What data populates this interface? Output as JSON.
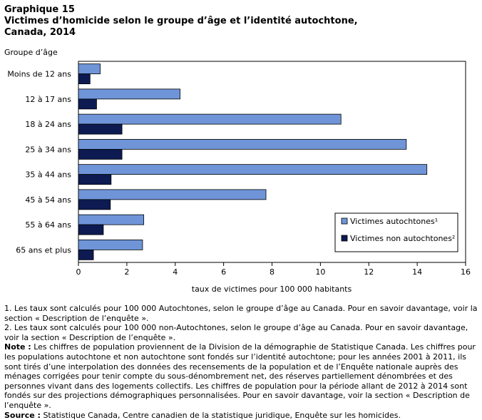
{
  "header": {
    "graph_number": "Graphique  15",
    "title_line1": "Victimes d’homicide selon le groupe d’âge et l’identité autochtone,",
    "title_line2": "Canada, 2014"
  },
  "chart_data": {
    "type": "bar",
    "orientation": "horizontal",
    "categories": [
      "Moins de 12 ans",
      "12 à 17 ans",
      "18 à 24 ans",
      "25 à 34 ans",
      "35 à 44 ans",
      "45 à 54 ans",
      "55 à 64 ans",
      "65 ans et plus"
    ],
    "series": [
      {
        "name": "Victimes autochtones¹",
        "color": "#6f95d8",
        "values": [
          0.9,
          4.2,
          10.85,
          13.55,
          14.4,
          7.75,
          2.7,
          2.65
        ]
      },
      {
        "name": "Victimes non autochtones²",
        "color": "#0d1b52",
        "values": [
          0.48,
          0.75,
          1.8,
          1.8,
          1.35,
          1.32,
          1.03,
          0.62
        ]
      }
    ],
    "ylabel": "Groupe d’âge",
    "xlabel": "taux de victimes pour 100 000 habitants",
    "xlim": [
      0,
      16
    ],
    "xticks": [
      "0",
      "2",
      "4",
      "6",
      "8",
      "10",
      "12",
      "14",
      "16"
    ],
    "grid": false,
    "legend_position": "bottom-right"
  },
  "notes": {
    "note1": "1. Les taux sont calculés pour 100 000 Autochtones, selon le groupe d’âge au Canada. Pour en savoir davantage, voir la section « Description de l’enquête ».",
    "note2": "2. Les taux sont calculés pour 100 000 non-Autochtones, selon le groupe d’âge au Canada. Pour en savoir davantage, voir la section « Description de l’enquête ».",
    "note_label": "Note :",
    "note_text": " Les chiffres de population proviennent de la Division de la démographie de Statistique Canada. Les chiffres pour les populations autochtone et non autochtone sont fondés sur l’identité autochtone; pour les années 2001 à 2011, ils sont tirés d’une interpolation des données des recensements de la population et de l’Enquête nationale auprès des ménages corrigées pour tenir compte du sous-dénombrement net, des réserves partiellement dénombrées et des personnes vivant dans des logements collectifs. Les chiffres de population pour la période allant de 2012 à 2014 sont fondés sur des projections démographiques personnalisées. Pour en savoir davantage, voir la section « Description de l’enquête ».",
    "source_label": "Source :",
    "source_text": " Statistique Canada, Centre canadien de la statistique juridique, Enquête sur les homicides."
  }
}
